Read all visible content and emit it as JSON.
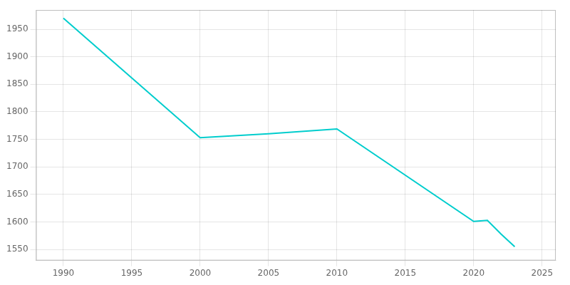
{
  "chart_data": {
    "type": "line",
    "x": [
      1990,
      2000,
      2005,
      2010,
      2020,
      2021,
      2022,
      2023
    ],
    "values": [
      1970,
      1753,
      1760,
      1769,
      1601,
      1603,
      1578,
      1555
    ],
    "color": "#00CDCD",
    "xlim": [
      1988,
      2026
    ],
    "ylim": [
      1530,
      1985
    ],
    "xticks": [
      1990,
      1995,
      2000,
      2005,
      2010,
      2015,
      2020,
      2025
    ],
    "yticks": [
      1550,
      1600,
      1650,
      1700,
      1750,
      1800,
      1850,
      1900,
      1950
    ],
    "grid": true
  }
}
